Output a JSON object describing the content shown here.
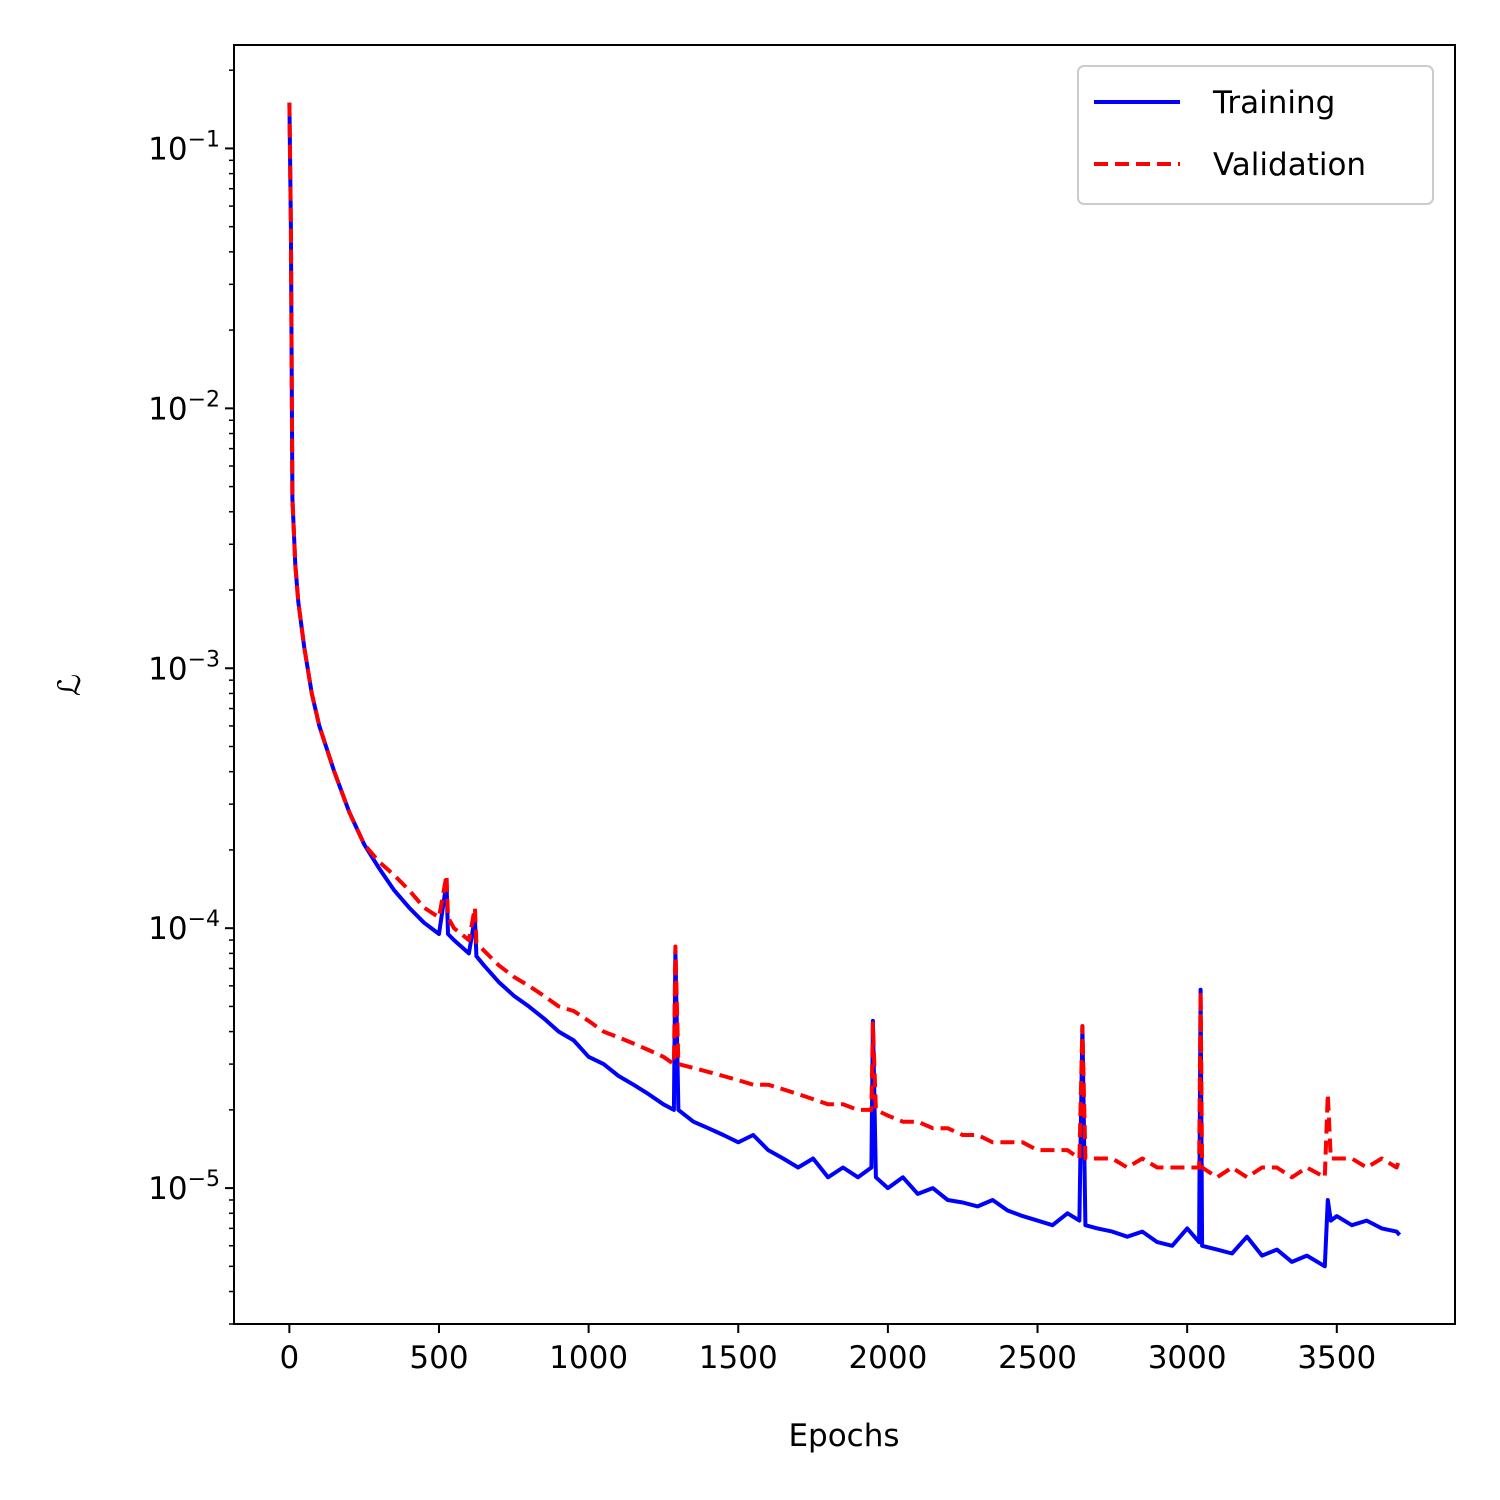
{
  "chart_data": {
    "type": "line",
    "title": "",
    "xlabel": "Epochs",
    "ylabel": "ℒ",
    "yscale": "log",
    "xlim": [
      -185,
      3895
    ],
    "ylim": [
      3e-06,
      0.25
    ],
    "grid": false,
    "legend_position": "top-right",
    "x_ticks": [
      0,
      500,
      1000,
      1500,
      2000,
      2500,
      3000,
      3500
    ],
    "x_tick_labels": [
      "0",
      "500",
      "1000",
      "1500",
      "2000",
      "2500",
      "3000",
      "3500"
    ],
    "y_ticks": [
      0.1,
      0.01,
      0.001,
      0.0001,
      1e-05
    ],
    "y_tick_labels": [
      {
        "base": "10",
        "exp": "−1"
      },
      {
        "base": "10",
        "exp": "−2"
      },
      {
        "base": "10",
        "exp": "−3"
      },
      {
        "base": "10",
        "exp": "−4"
      },
      {
        "base": "10",
        "exp": "−5"
      }
    ],
    "series": [
      {
        "name": "Training",
        "color": "#0000ff",
        "style": "solid",
        "x": [
          0,
          5,
          10,
          20,
          30,
          50,
          75,
          100,
          150,
          200,
          250,
          300,
          350,
          400,
          450,
          500,
          525,
          530,
          550,
          600,
          620,
          625,
          650,
          700,
          750,
          800,
          850,
          900,
          950,
          1000,
          1050,
          1100,
          1150,
          1200,
          1250,
          1285,
          1290,
          1300,
          1350,
          1400,
          1450,
          1500,
          1550,
          1600,
          1650,
          1700,
          1750,
          1800,
          1850,
          1900,
          1945,
          1950,
          1960,
          2000,
          2050,
          2100,
          2150,
          2200,
          2250,
          2300,
          2350,
          2400,
          2450,
          2500,
          2550,
          2600,
          2640,
          2650,
          2660,
          2700,
          2750,
          2800,
          2850,
          2900,
          2950,
          3000,
          3040,
          3045,
          3050,
          3100,
          3150,
          3200,
          3250,
          3300,
          3350,
          3400,
          3460,
          3470,
          3480,
          3500,
          3550,
          3600,
          3650,
          3700,
          3710
        ],
        "y": [
          0.15,
          0.05,
          0.0045,
          0.0025,
          0.0018,
          0.0012,
          0.0008,
          0.0006,
          0.0004,
          0.00028,
          0.00021,
          0.00017,
          0.00014,
          0.00012,
          0.000105,
          9.5e-05,
          0.00015,
          9.5e-05,
          9e-05,
          8e-05,
          0.00011,
          7.8e-05,
          7.2e-05,
          6.2e-05,
          5.5e-05,
          5e-05,
          4.5e-05,
          4e-05,
          3.7e-05,
          3.2e-05,
          3e-05,
          2.7e-05,
          2.5e-05,
          2.3e-05,
          2.1e-05,
          2e-05,
          8.2e-05,
          2e-05,
          1.8e-05,
          1.7e-05,
          1.6e-05,
          1.5e-05,
          1.6e-05,
          1.4e-05,
          1.3e-05,
          1.2e-05,
          1.3e-05,
          1.1e-05,
          1.2e-05,
          1.1e-05,
          1.2e-05,
          4.4e-05,
          1.1e-05,
          1e-05,
          1.1e-05,
          9.5e-06,
          1e-05,
          9e-06,
          8.8e-06,
          8.5e-06,
          9e-06,
          8.2e-06,
          7.8e-06,
          7.5e-06,
          7.2e-06,
          8e-06,
          7.5e-06,
          4.2e-05,
          7.2e-06,
          7e-06,
          6.8e-06,
          6.5e-06,
          6.8e-06,
          6.2e-06,
          6e-06,
          7e-06,
          6.2e-06,
          5.8e-05,
          6e-06,
          5.8e-06,
          5.6e-06,
          6.5e-06,
          5.5e-06,
          5.8e-06,
          5.2e-06,
          5.5e-06,
          5e-06,
          9e-06,
          7.5e-06,
          7.8e-06,
          7.2e-06,
          7.5e-06,
          7e-06,
          6.8e-06,
          6.6e-06
        ]
      },
      {
        "name": "Validation",
        "color": "#ff0000",
        "style": "dashed",
        "x": [
          0,
          5,
          10,
          20,
          30,
          50,
          75,
          100,
          150,
          200,
          250,
          300,
          350,
          400,
          450,
          500,
          525,
          530,
          550,
          600,
          620,
          625,
          650,
          700,
          750,
          800,
          850,
          900,
          950,
          1000,
          1050,
          1100,
          1150,
          1200,
          1250,
          1285,
          1290,
          1300,
          1350,
          1400,
          1450,
          1500,
          1550,
          1600,
          1650,
          1700,
          1750,
          1800,
          1850,
          1900,
          1945,
          1950,
          1960,
          2000,
          2050,
          2100,
          2150,
          2200,
          2250,
          2300,
          2350,
          2400,
          2450,
          2500,
          2550,
          2600,
          2640,
          2650,
          2660,
          2700,
          2750,
          2800,
          2850,
          2900,
          2950,
          3000,
          3040,
          3045,
          3050,
          3100,
          3150,
          3200,
          3250,
          3300,
          3350,
          3400,
          3460,
          3470,
          3480,
          3500,
          3550,
          3600,
          3650,
          3700,
          3710
        ],
        "y": [
          0.15,
          0.05,
          0.0045,
          0.0025,
          0.0018,
          0.0012,
          0.0008,
          0.0006,
          0.0004,
          0.00028,
          0.00021,
          0.00018,
          0.00016,
          0.00014,
          0.00012,
          0.00011,
          0.00016,
          0.00011,
          0.0001,
          9e-05,
          0.00012,
          8.8e-05,
          8.2e-05,
          7.2e-05,
          6.5e-05,
          6e-05,
          5.5e-05,
          5e-05,
          4.8e-05,
          4.4e-05,
          4e-05,
          3.8e-05,
          3.6e-05,
          3.4e-05,
          3.2e-05,
          3e-05,
          8.5e-05,
          3e-05,
          2.9e-05,
          2.8e-05,
          2.7e-05,
          2.6e-05,
          2.5e-05,
          2.5e-05,
          2.4e-05,
          2.3e-05,
          2.2e-05,
          2.1e-05,
          2.1e-05,
          2e-05,
          2e-05,
          4.3e-05,
          2e-05,
          1.9e-05,
          1.8e-05,
          1.8e-05,
          1.7e-05,
          1.7e-05,
          1.6e-05,
          1.6e-05,
          1.5e-05,
          1.5e-05,
          1.5e-05,
          1.4e-05,
          1.4e-05,
          1.4e-05,
          1.3e-05,
          4.2e-05,
          1.3e-05,
          1.3e-05,
          1.3e-05,
          1.2e-05,
          1.3e-05,
          1.2e-05,
          1.2e-05,
          1.2e-05,
          1.2e-05,
          5.7e-05,
          1.2e-05,
          1.1e-05,
          1.2e-05,
          1.1e-05,
          1.2e-05,
          1.2e-05,
          1.1e-05,
          1.2e-05,
          1.1e-05,
          2.3e-05,
          1.3e-05,
          1.3e-05,
          1.3e-05,
          1.2e-05,
          1.3e-05,
          1.2e-05,
          1.3e-05
        ]
      }
    ]
  }
}
